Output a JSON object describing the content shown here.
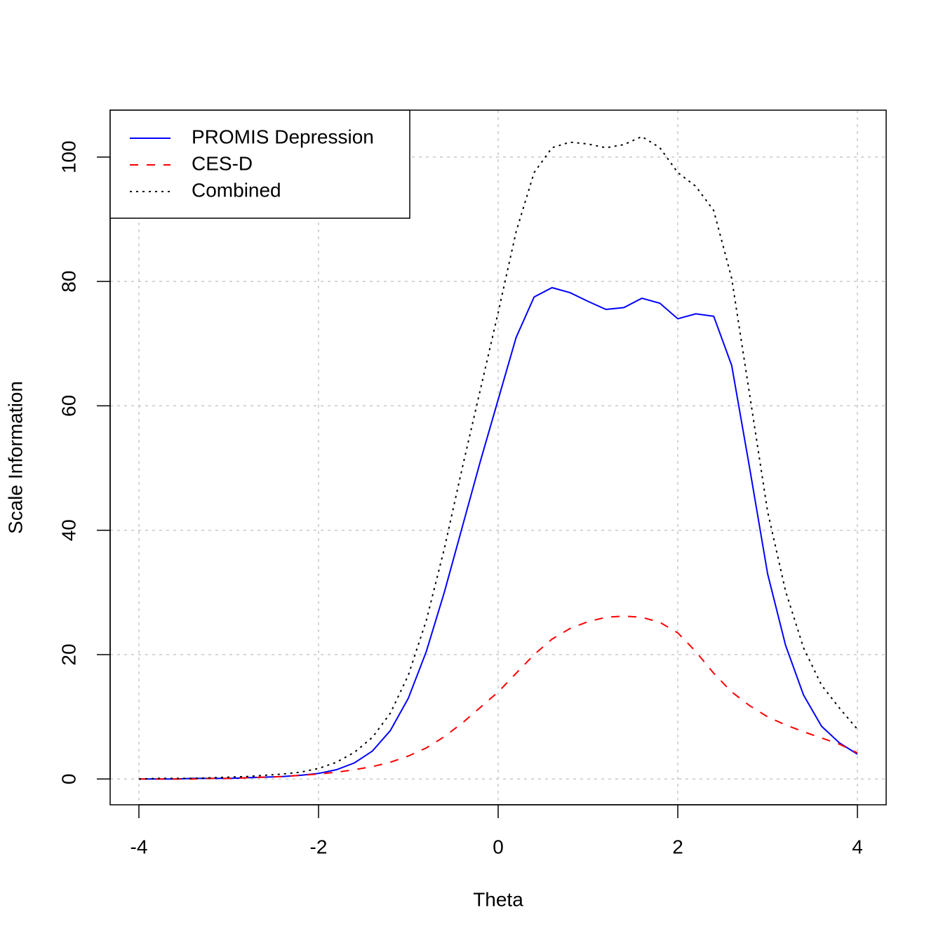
{
  "chart_data": {
    "type": "line",
    "x_label": "Theta",
    "y_label": "Scale Information",
    "x": [
      -4,
      -3.8,
      -3.6,
      -3.4,
      -3.2,
      -3,
      -2.8,
      -2.6,
      -2.4,
      -2.2,
      -2,
      -1.8,
      -1.6,
      -1.4,
      -1.2,
      -1,
      -0.8,
      -0.6,
      -0.4,
      -0.2,
      0,
      0.2,
      0.4,
      0.6,
      0.8,
      1,
      1.2,
      1.4,
      1.6,
      1.8,
      2,
      2.2,
      2.4,
      2.6,
      2.8,
      3,
      3.2,
      3.4,
      3.6,
      3.8,
      4
    ],
    "series": [
      {
        "name": "PROMIS Depression",
        "color": "#0000ff",
        "dash": "solid",
        "values": [
          0,
          0,
          0,
          0.1,
          0.1,
          0.1,
          0.2,
          0.3,
          0.4,
          0.6,
          0.9,
          1.5,
          2.6,
          4.5,
          7.8,
          13,
          20.5,
          30,
          40.5,
          51,
          61,
          71,
          77.5,
          79,
          78.2,
          76.8,
          75.5,
          75.8,
          77.3,
          76.5,
          74,
          74.8,
          74.4,
          66.5,
          50,
          33,
          21.5,
          13.5,
          8.5,
          5.8,
          4
        ]
      },
      {
        "name": "CES-D",
        "color": "#ff0000",
        "dash": "dashed",
        "values": [
          0,
          0,
          0,
          0,
          0.1,
          0.1,
          0.2,
          0.3,
          0.4,
          0.6,
          0.8,
          1.1,
          1.5,
          2,
          2.7,
          3.7,
          5,
          6.8,
          9,
          11.5,
          14,
          17,
          20,
          22.5,
          24.2,
          25.3,
          26,
          26.2,
          26,
          25.2,
          23.5,
          20.5,
          17,
          14,
          11.8,
          10,
          8.7,
          7.6,
          6.6,
          5.6,
          4.2
        ]
      },
      {
        "name": "Combined",
        "color": "#000000",
        "dash": "dotted",
        "values": [
          0,
          0.1,
          0.1,
          0.1,
          0.2,
          0.3,
          0.4,
          0.6,
          0.8,
          1.1,
          1.7,
          2.7,
          4.3,
          6.7,
          10.6,
          16.7,
          25.5,
          37,
          50,
          62.5,
          75,
          88,
          97.5,
          101.5,
          102.4,
          102.1,
          101.5,
          102,
          103.3,
          101.5,
          97.5,
          95.3,
          91.4,
          80.5,
          61.8,
          43,
          30.2,
          21.1,
          15.1,
          11.4,
          8
        ]
      }
    ],
    "xlim": [
      -4.32,
      4.32
    ],
    "xticks": [
      -4,
      -2,
      0,
      2,
      4
    ],
    "ylim": [
      -4.14,
      107.54
    ],
    "yticks": [
      0,
      20,
      40,
      60,
      80,
      100
    ],
    "grid": true,
    "legend": "top-left"
  }
}
